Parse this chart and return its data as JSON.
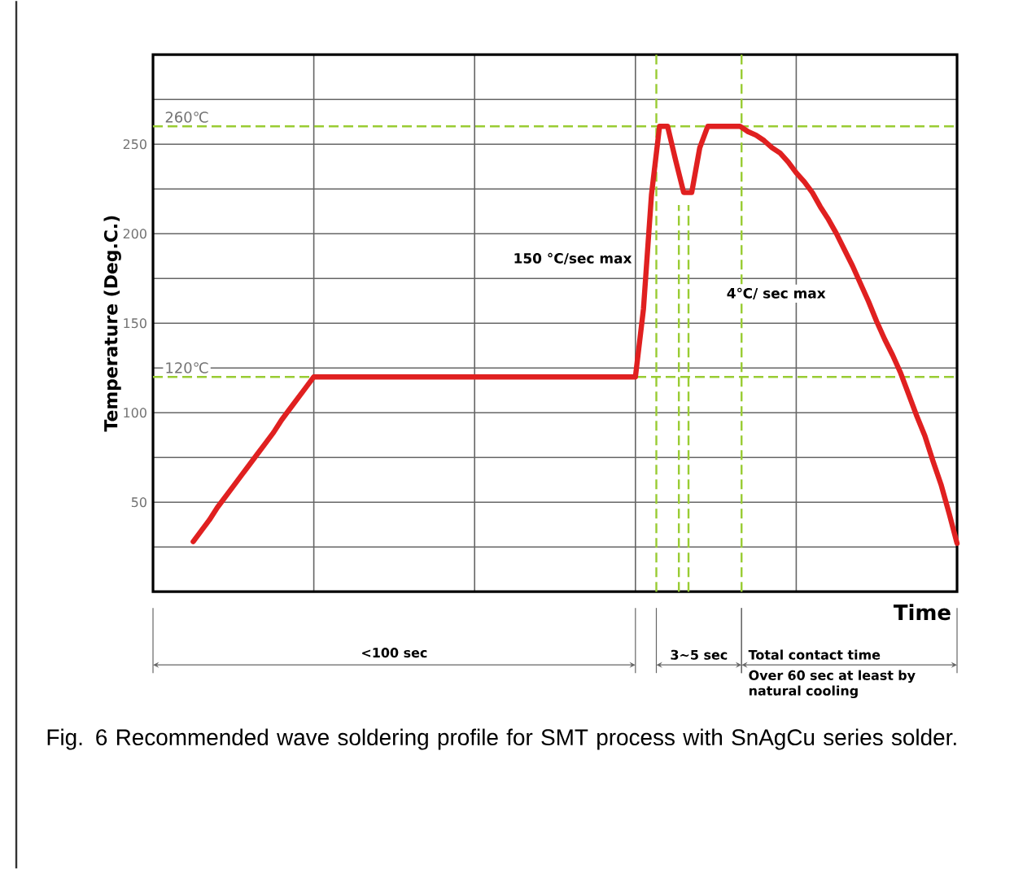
{
  "chart_data": {
    "type": "line",
    "ylabel": "Temperature (Deg.C.)",
    "xlabel": "Time",
    "categories": [
      null,
      null,
      null,
      null,
      null,
      null,
      null,
      null,
      null,
      null,
      null,
      null,
      null,
      null,
      null,
      null,
      null,
      null,
      null,
      null,
      null,
      null,
      null,
      null,
      null,
      null,
      null,
      null,
      null,
      null,
      null,
      null,
      null,
      null,
      null,
      null,
      null,
      null,
      null,
      null,
      null,
      null,
      null,
      null,
      null,
      null,
      null,
      null,
      null,
      null,
      null,
      null,
      null,
      null,
      null,
      null,
      null,
      null,
      null,
      null,
      null,
      null,
      null,
      null,
      null,
      null,
      null,
      null,
      null,
      null,
      null,
      null,
      null,
      null,
      null,
      null,
      null,
      null,
      null,
      null,
      null,
      null,
      null,
      null,
      null,
      null,
      null,
      null,
      null,
      null,
      null,
      null,
      null,
      null,
      null,
      null,
      null,
      null,
      null,
      null,
      null
    ],
    "ylim": [
      0,
      300
    ],
    "yticks": [
      {
        "value": 25,
        "label": null
      },
      50,
      {
        "value": 75,
        "label": null
      },
      100,
      {
        "value": 125,
        "label": null
      },
      150,
      {
        "value": 175,
        "label": null
      },
      200,
      {
        "value": 225,
        "label": null
      },
      250,
      {
        "value": 275,
        "label": null
      }
    ],
    "grid": true,
    "marker": "none",
    "line_style": "solid",
    "series": [
      {
        "color": "#e02020",
        "values": [
          null,
          null,
          null,
          null,
          null,
          28,
          34,
          40,
          47,
          53,
          59,
          65,
          71,
          77,
          83,
          89,
          96,
          102,
          108,
          114,
          120,
          120,
          120,
          120,
          120,
          120,
          120,
          120,
          120,
          120,
          120,
          120,
          120,
          120,
          120,
          120,
          120,
          120,
          120,
          120,
          120,
          120,
          120,
          120,
          120,
          120,
          120,
          120,
          120,
          120,
          120,
          120,
          120,
          120,
          120,
          120,
          120,
          120,
          120,
          120,
          120,
          158,
          222,
          260,
          260,
          241,
          223,
          223,
          248,
          260,
          260,
          260,
          260,
          260,
          257,
          255,
          252,
          248,
          245,
          240,
          234,
          229,
          223,
          215,
          208,
          200,
          191,
          182,
          172,
          162,
          151,
          141,
          132,
          122,
          110,
          98,
          87,
          73,
          60,
          44,
          27
        ]
      }
    ],
    "ref_lines": [
      {
        "axis": "y",
        "value": 260,
        "label": "260℃",
        "color": "#99cc33",
        "line_style": "dashed"
      },
      {
        "axis": "y",
        "value": 120,
        "label": "120℃",
        "color": "#99cc33",
        "line_style": "dashed"
      }
    ],
    "annotations": [
      "150 °C/sec max",
      "4℃/ sec max",
      "<100 sec",
      "3~5 sec",
      "Total contact time",
      "Over 60 sec at least by natural cooling",
      "Fig. 6 Recommended wave soldering profile for SMT process with SnAgCu series solder."
    ]
  }
}
